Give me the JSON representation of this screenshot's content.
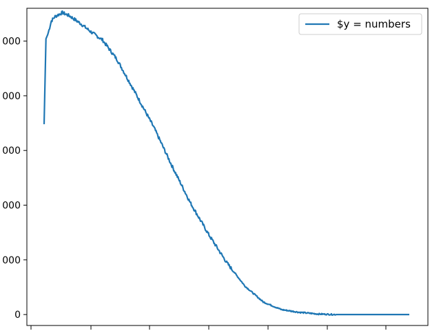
{
  "chart_data": {
    "type": "line",
    "title": "",
    "xlabel": "",
    "ylabel": "",
    "ylim": [
      -200,
      5600
    ],
    "y_ticks": [
      0,
      1000,
      2000,
      3000,
      4000,
      5000
    ],
    "y_tick_labels": [
      "0",
      "000",
      "000",
      "000",
      "000",
      "000"
    ],
    "grid": false,
    "legend": {
      "position": "upper right",
      "entries": [
        "$y = numbers"
      ]
    },
    "series": [
      {
        "name": "$y = numbers",
        "color": "#1f77b4",
        "x": [
          0,
          0.5,
          1,
          2,
          3,
          5,
          7,
          10,
          13,
          16,
          20,
          25,
          30,
          35,
          40,
          45,
          50,
          55,
          60,
          65,
          70,
          75,
          80,
          85,
          90,
          95,
          100
        ],
        "y": [
          3480,
          5040,
          5120,
          5370,
          5450,
          5520,
          5460,
          5320,
          5160,
          5020,
          4660,
          4050,
          3430,
          2720,
          2050,
          1470,
          950,
          520,
          230,
          90,
          40,
          10,
          0,
          0,
          0,
          0,
          0
        ]
      }
    ]
  }
}
